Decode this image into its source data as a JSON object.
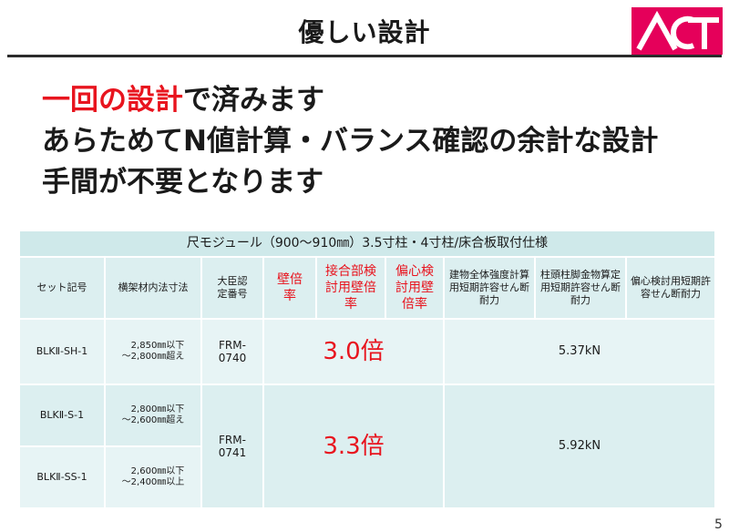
{
  "header": {
    "title": "優しい設計",
    "logo_text": "ACT"
  },
  "headline": {
    "line1_highlight": "一回の設計",
    "line1_rest": "で済みます",
    "line2": "あらためてN値計算・バランス確認の余計な設計",
    "line3": "手間が不要となります"
  },
  "table": {
    "caption": "尺モジュール（900〜910㎜）3.5寸柱・4寸柱/床合板取付仕様",
    "headers": {
      "set": "セット記号",
      "dim": "横架材内法寸法",
      "cert": "大臣認定番号",
      "wall": "壁倍率",
      "joint": "接合部検討用壁倍率",
      "ecc": "偏心検討用壁倍率",
      "bldg": "建物全体強度計算用短期許容せん断耐力",
      "post": "柱頭柱脚金物算定用短期許容せん断耐力",
      "ecc_cap": "偏心検討用短期許容せん断耐力"
    },
    "rows": [
      {
        "set": "BLKⅡ-SH-1",
        "dim_upper": "2,850㎜以下",
        "dim_lower": "〜2,800㎜超え"
      },
      {
        "set": "BLKⅡ-S-1",
        "dim_upper": "2,800㎜以下",
        "dim_lower": "〜2,600㎜超え"
      },
      {
        "set": "BLKⅡ-SS-1",
        "dim_upper": "2,600㎜以下",
        "dim_lower": "〜2,400㎜以上"
      }
    ],
    "groups": [
      {
        "cert": "FRM-0740",
        "ratio": "3.0倍",
        "capacity": "5.37kN"
      },
      {
        "cert": "FRM-0741",
        "ratio": "3.3倍",
        "capacity": "5.92kN"
      }
    ]
  },
  "footer": {
    "page_number": "5"
  },
  "colors": {
    "accent_red": "#e8141e",
    "brand_pink": "#e5005a",
    "table_header": "#cfe9ea"
  }
}
